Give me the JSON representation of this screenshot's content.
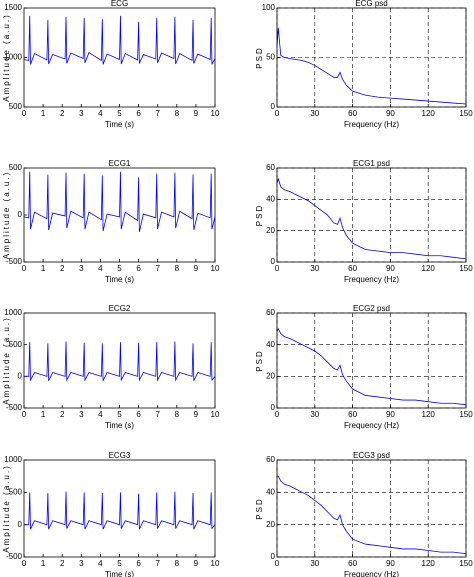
{
  "chart_data": [
    {
      "type": "line",
      "title": "ECG",
      "xlabel": "Time (s)",
      "ylabel": "Amplitude (a.u.)",
      "x": [
        0,
        0.25,
        0.3,
        0.34,
        0.55,
        1.2,
        1.25,
        1.29,
        1.5,
        2.15,
        2.2,
        2.24,
        2.45,
        3.1,
        3.15,
        3.19,
        3.4,
        4.05,
        4.1,
        4.14,
        4.35,
        5,
        5.05,
        5.09,
        5.3,
        5.95,
        6,
        6.04,
        6.25,
        6.9,
        6.95,
        6.99,
        7.2,
        7.85,
        7.9,
        7.94,
        8.15,
        8.8,
        8.85,
        8.89,
        9.1,
        9.75,
        9.8,
        9.84,
        10
      ],
      "series": [
        {
          "name": "ECG",
          "color": "#0000ff",
          "values": [
            980,
            970,
            1420,
            930,
            1040,
            975,
            1380,
            935,
            1030,
            985,
            1410,
            940,
            1045,
            990,
            1400,
            945,
            1050,
            970,
            1390,
            930,
            1035,
            980,
            1420,
            935,
            1040,
            975,
            1360,
            940,
            1030,
            985,
            1400,
            945,
            1045,
            990,
            1410,
            935,
            1040,
            970,
            1380,
            940,
            1035,
            980,
            1400,
            930,
            990
          ]
        }
      ],
      "xlim": [
        0,
        10
      ],
      "xticks": [
        0,
        1,
        2,
        3,
        4,
        5,
        6,
        7,
        8,
        9,
        10
      ],
      "ylim": [
        500,
        1500
      ],
      "yticks": [
        500,
        1000,
        1500
      ],
      "grid": false
    },
    {
      "type": "line",
      "title": "ECG psd",
      "xlabel": "Frequency (Hz)",
      "ylabel": "PSD",
      "x": [
        0,
        1,
        3,
        6,
        10,
        15,
        20,
        25,
        30,
        35,
        40,
        45,
        48,
        50,
        52,
        55,
        60,
        70,
        80,
        90,
        100,
        110,
        120,
        130,
        140,
        150
      ],
      "series": [
        {
          "name": "ECG psd",
          "color": "#0000ff",
          "values": [
            60,
            80,
            52,
            50,
            49,
            48,
            47,
            45,
            42,
            38,
            34,
            30,
            30,
            35,
            28,
            22,
            16,
            12,
            10,
            9,
            8,
            7,
            6,
            5,
            4,
            3
          ]
        }
      ],
      "xlim": [
        0,
        150
      ],
      "xticks": [
        0,
        30,
        60,
        90,
        120,
        150
      ],
      "ylim": [
        0,
        100
      ],
      "yticks": [
        0,
        50,
        100
      ],
      "grid": true
    },
    {
      "type": "line",
      "title": "ECG1",
      "xlabel": "Time (s)",
      "ylabel": "Amplitude (a.u.)",
      "x": [
        0,
        0.25,
        0.3,
        0.34,
        0.55,
        1.2,
        1.25,
        1.29,
        1.5,
        2.15,
        2.2,
        2.24,
        2.45,
        3.1,
        3.15,
        3.19,
        3.4,
        4.05,
        4.1,
        4.14,
        4.35,
        5,
        5.05,
        5.09,
        5.3,
        5.95,
        6,
        6.04,
        6.25,
        6.9,
        6.95,
        6.99,
        7.2,
        7.85,
        7.9,
        7.94,
        8.15,
        8.8,
        8.85,
        8.89,
        9.1,
        9.75,
        9.8,
        9.84,
        10
      ],
      "series": [
        {
          "name": "ECG1",
          "color": "#0000ff",
          "values": [
            -20,
            -30,
            460,
            -150,
            30,
            -40,
            430,
            -160,
            20,
            -10,
            450,
            -140,
            40,
            -30,
            440,
            -150,
            30,
            -50,
            420,
            -170,
            10,
            -20,
            460,
            -150,
            30,
            -60,
            400,
            -180,
            10,
            -30,
            440,
            -150,
            30,
            -20,
            450,
            -140,
            40,
            -40,
            430,
            -160,
            20,
            -30,
            440,
            -150,
            -20
          ]
        }
      ],
      "xlim": [
        0,
        10
      ],
      "xticks": [
        0,
        1,
        2,
        3,
        4,
        5,
        6,
        7,
        8,
        9,
        10
      ],
      "ylim": [
        -500,
        500
      ],
      "yticks": [
        -500,
        0,
        500
      ],
      "grid": false
    },
    {
      "type": "line",
      "title": "ECG1 psd",
      "xlabel": "Frequency (Hz)",
      "ylabel": "PSD",
      "x": [
        0,
        1,
        3,
        6,
        10,
        15,
        20,
        25,
        30,
        35,
        40,
        45,
        48,
        50,
        52,
        55,
        60,
        70,
        80,
        90,
        100,
        110,
        120,
        130,
        140,
        150
      ],
      "series": [
        {
          "name": "ECG1 psd",
          "color": "#0000ff",
          "values": [
            50,
            53,
            48,
            46,
            45,
            43,
            41,
            39,
            36,
            33,
            30,
            25,
            24,
            28,
            22,
            17,
            12,
            8,
            7,
            6,
            6,
            5,
            4,
            4,
            3,
            2
          ]
        }
      ],
      "xlim": [
        0,
        150
      ],
      "xticks": [
        0,
        30,
        60,
        90,
        120,
        150
      ],
      "ylim": [
        0,
        60
      ],
      "yticks": [
        0,
        20,
        40,
        60
      ],
      "grid": true
    },
    {
      "type": "line",
      "title": "ECG2",
      "xlabel": "Time (s)",
      "ylabel": "Amplitude (a.u.)",
      "x": [
        0,
        0.25,
        0.3,
        0.34,
        0.55,
        1.2,
        1.25,
        1.29,
        1.5,
        2.15,
        2.2,
        2.24,
        2.45,
        3.1,
        3.15,
        3.19,
        3.4,
        4.05,
        4.1,
        4.14,
        4.35,
        5,
        5.05,
        5.09,
        5.3,
        5.95,
        6,
        6.04,
        6.25,
        6.9,
        6.95,
        6.99,
        7.2,
        7.85,
        7.9,
        7.94,
        8.15,
        8.8,
        8.85,
        8.89,
        9.1,
        9.75,
        9.8,
        9.84,
        10
      ],
      "series": [
        {
          "name": "ECG2",
          "color": "#0000ff",
          "values": [
            0,
            0,
            540,
            -60,
            60,
            0,
            520,
            -70,
            60,
            0,
            550,
            -60,
            60,
            0,
            530,
            -60,
            60,
            0,
            520,
            -70,
            60,
            0,
            540,
            -60,
            60,
            0,
            530,
            -60,
            60,
            0,
            540,
            -60,
            60,
            0,
            550,
            -60,
            60,
            0,
            520,
            -70,
            60,
            0,
            540,
            -60,
            0
          ]
        }
      ],
      "xlim": [
        0,
        10
      ],
      "xticks": [
        0,
        1,
        2,
        3,
        4,
        5,
        6,
        7,
        8,
        9,
        10
      ],
      "ylim": [
        -500,
        1000
      ],
      "yticks": [
        -500,
        0,
        500,
        1000
      ],
      "grid": false
    },
    {
      "type": "line",
      "title": "ECG2 psd",
      "xlabel": "Frequency (Hz)",
      "ylabel": "PSD",
      "x": [
        0,
        1,
        3,
        6,
        10,
        15,
        20,
        25,
        30,
        35,
        40,
        45,
        48,
        50,
        52,
        55,
        60,
        70,
        80,
        90,
        100,
        110,
        120,
        130,
        140,
        150
      ],
      "series": [
        {
          "name": "ECG2 psd",
          "color": "#0000ff",
          "values": [
            48,
            50,
            47,
            45,
            44,
            42,
            40,
            38,
            36,
            33,
            29,
            25,
            24,
            27,
            21,
            17,
            12,
            8,
            7,
            6,
            5,
            5,
            4,
            3,
            3,
            2
          ]
        }
      ],
      "xlim": [
        0,
        150
      ],
      "xticks": [
        0,
        30,
        60,
        90,
        120,
        150
      ],
      "ylim": [
        0,
        60
      ],
      "yticks": [
        0,
        20,
        40,
        60
      ],
      "grid": true
    },
    {
      "type": "line",
      "title": "ECG3",
      "xlabel": "Time (s)",
      "ylabel": "Amplitude (a.u.)",
      "x": [
        0,
        0.25,
        0.3,
        0.34,
        0.55,
        1.2,
        1.25,
        1.29,
        1.5,
        2.15,
        2.2,
        2.24,
        2.45,
        3.1,
        3.15,
        3.19,
        3.4,
        4.05,
        4.1,
        4.14,
        4.35,
        5,
        5.05,
        5.09,
        5.3,
        5.95,
        6,
        6.04,
        6.25,
        6.9,
        6.95,
        6.99,
        7.2,
        7.85,
        7.9,
        7.94,
        8.15,
        8.8,
        8.85,
        8.89,
        9.1,
        9.75,
        9.8,
        9.84,
        10
      ],
      "series": [
        {
          "name": "ECG3",
          "color": "#0000ff",
          "values": [
            0,
            0,
            500,
            -70,
            60,
            0,
            490,
            -70,
            60,
            0,
            510,
            -60,
            60,
            0,
            500,
            -70,
            60,
            0,
            490,
            -70,
            60,
            0,
            500,
            -60,
            60,
            0,
            480,
            -70,
            60,
            0,
            500,
            -60,
            60,
            0,
            510,
            -60,
            60,
            0,
            490,
            -70,
            60,
            0,
            500,
            -60,
            0
          ]
        }
      ],
      "xlim": [
        0,
        10
      ],
      "xticks": [
        0,
        1,
        2,
        3,
        4,
        5,
        6,
        7,
        8,
        9,
        10
      ],
      "ylim": [
        -500,
        1000
      ],
      "yticks": [
        -500,
        0,
        500,
        1000
      ],
      "grid": false
    },
    {
      "type": "line",
      "title": "ECG3 psd",
      "xlabel": "Frequency (Hz)",
      "ylabel": "PSD",
      "x": [
        0,
        1,
        3,
        6,
        10,
        15,
        20,
        25,
        30,
        35,
        40,
        45,
        48,
        50,
        52,
        55,
        60,
        70,
        80,
        90,
        100,
        110,
        120,
        130,
        140,
        150
      ],
      "series": [
        {
          "name": "ECG3 psd",
          "color": "#0000ff",
          "values": [
            50,
            50,
            47,
            45,
            44,
            42,
            40,
            38,
            35,
            32,
            28,
            24,
            23,
            26,
            20,
            16,
            11,
            8,
            7,
            6,
            5,
            5,
            4,
            3,
            3,
            2
          ]
        }
      ],
      "xlim": [
        0,
        150
      ],
      "xticks": [
        0,
        30,
        60,
        90,
        120,
        150
      ],
      "ylim": [
        0,
        60
      ],
      "yticks": [
        0,
        20,
        40,
        60
      ],
      "grid": true
    }
  ]
}
